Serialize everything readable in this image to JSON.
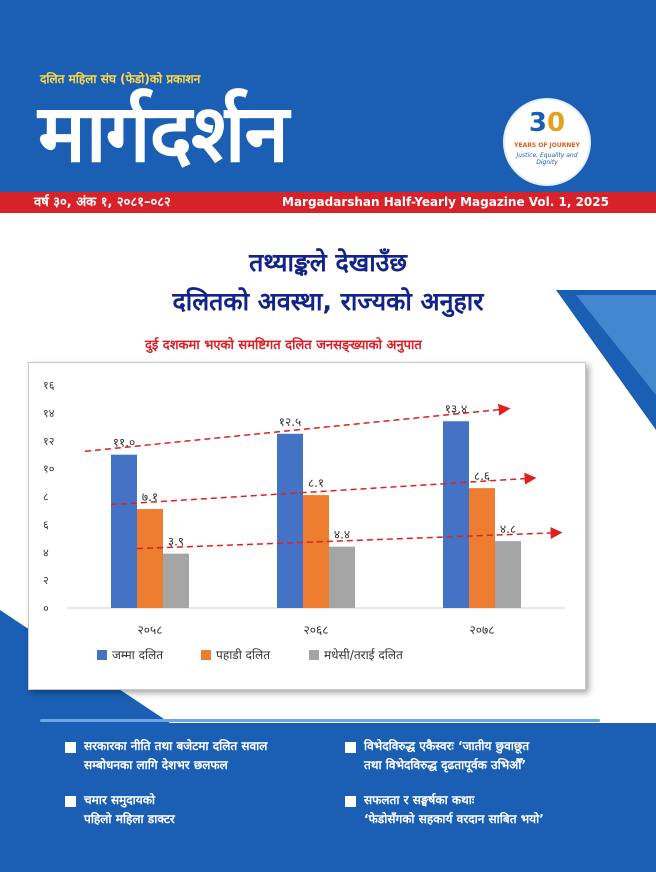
{
  "header": {
    "publisher": "दलित महिला संघ (फेडो)को प्रकाशन",
    "masthead": "मार्गदर्शन",
    "badge": {
      "number_main": "3",
      "number_accent": "0",
      "line1": "YEARS OF JOURNEY",
      "line2": "Justice, Equality and Dignity"
    }
  },
  "bar": {
    "issue": "वर्ष ३०, अंक १, २०८१–०८२",
    "magazine": "Margadarshan Half-Yearly Magazine Vol. 1, 2025"
  },
  "headline": {
    "line1": "तथ्याङ्कले देखाउँछ",
    "line2": "दलितको अवस्था, राज्यको अनुहार"
  },
  "chart_data": {
    "type": "bar",
    "title": "दुई दशकमा भएको समष्टिगत दलित जनसङ्ख्याको अनुपात",
    "categories": [
      "२०५८",
      "२०६८",
      "२०७८"
    ],
    "series": [
      {
        "name": "जम्मा दलित",
        "values": [
          11.0,
          12.5,
          13.4
        ],
        "labels": [
          "११.०",
          "१२.५",
          "१३.४"
        ],
        "color": "#4472c4"
      },
      {
        "name": "पहाडी दलित",
        "values": [
          7.1,
          8.1,
          8.6
        ],
        "labels": [
          "७.१",
          "८.१",
          "८.६"
        ],
        "color": "#ed7d31"
      },
      {
        "name": "मधेसी/तराई दलित",
        "values": [
          3.9,
          4.4,
          4.8
        ],
        "labels": [
          "३.९",
          "४.४",
          "४.८"
        ],
        "color": "#a5a5a5"
      }
    ],
    "yticks": [
      "०",
      "२",
      "४",
      "६",
      "८",
      "१०",
      "१२",
      "१४",
      "१६"
    ],
    "ylim": [
      0,
      16
    ],
    "trend_color": "#e02020",
    "legend_position": "bottom"
  },
  "contents": [
    {
      "line1": "सरकारका नीति तथा बजेटमा दलित सवाल",
      "line2": "सम्बोधनका लागि देशभर छलफल"
    },
    {
      "line1": "विभेदविरुद्ध एकैस्वरः ‘जातीय छुवाछूत",
      "line2": "तथा विभेदविरुद्ध दृढतापूर्वक उभिऔँ’"
    },
    {
      "line1": "चमार समुदायको",
      "line2": "पहिलो महिला डाक्टर"
    },
    {
      "line1": "सफलता र सङ्घर्षका कथाः",
      "line2": "‘फेडोसँगको सहकार्य वरदान साबित भयो’"
    }
  ],
  "colors": {
    "brand_blue": "#1a5fb4",
    "red": "#d7222a",
    "gold": "#ffd84a",
    "navy": "#12238a"
  }
}
